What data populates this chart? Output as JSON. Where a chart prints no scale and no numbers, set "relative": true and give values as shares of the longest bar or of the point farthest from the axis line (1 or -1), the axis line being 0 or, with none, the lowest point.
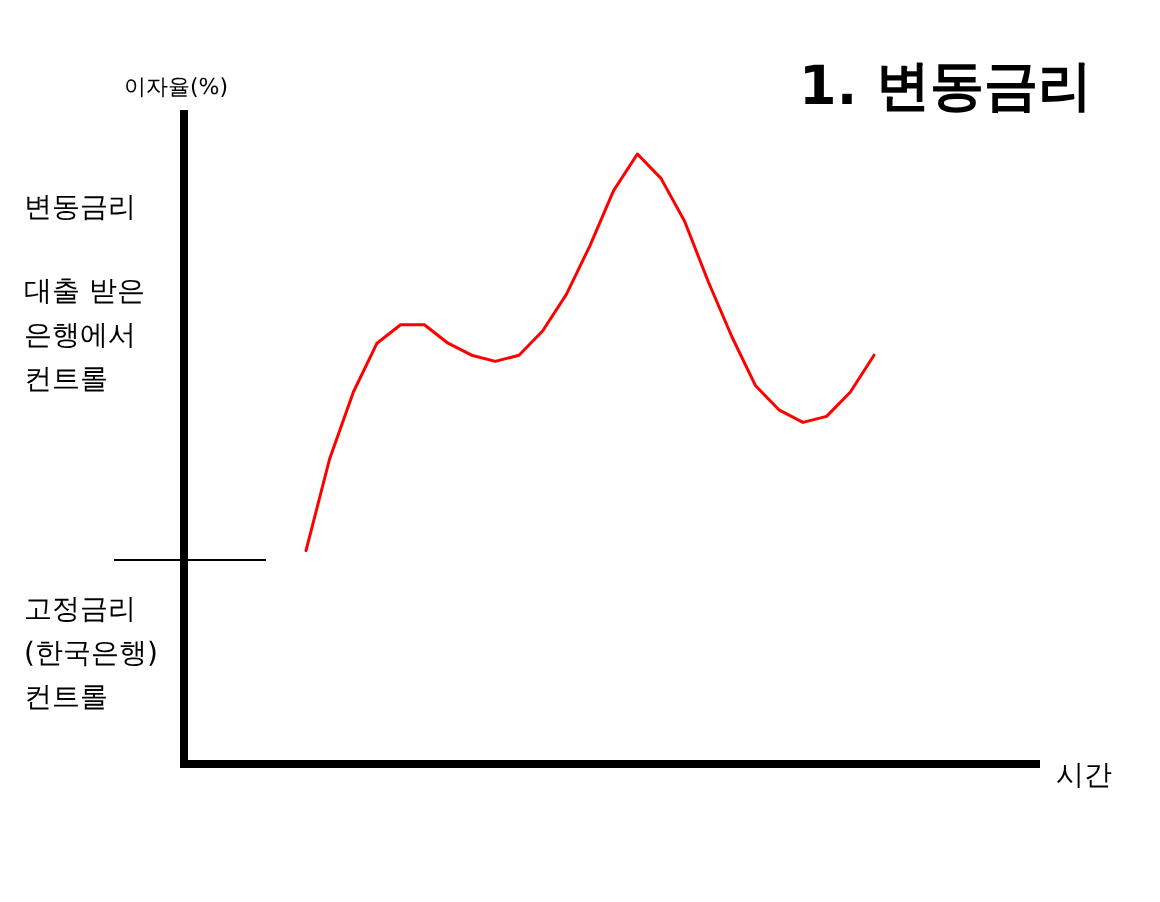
{
  "chart_data": {
    "type": "line",
    "title": "1. 변동금리",
    "ylabel": "이자율(%)",
    "relative": true,
    "categories": [
      null,
      null,
      null,
      null,
      null,
      null,
      null,
      null,
      null,
      null,
      null,
      null,
      null,
      null,
      null,
      null,
      null,
      null,
      null,
      null,
      null,
      null,
      null,
      null,
      null
    ],
    "series": [
      {
        "color": "#ff0000",
        "values": [
          0.35,
          0.5,
          0.61,
          0.69,
          0.72,
          0.72,
          0.69,
          0.67,
          0.66,
          0.67,
          0.71,
          0.77,
          0.85,
          0.94,
          1,
          0.96,
          0.89,
          0.79,
          0.7,
          0.62,
          0.58,
          0.56,
          0.57,
          0.61,
          0.67
        ]
      }
    ],
    "annotations": [
      "변동금리",
      "대출 받은\n은행에서\n컨트롤",
      "고정금리\n(한국은행)\n컨트롤",
      "시간"
    ]
  }
}
